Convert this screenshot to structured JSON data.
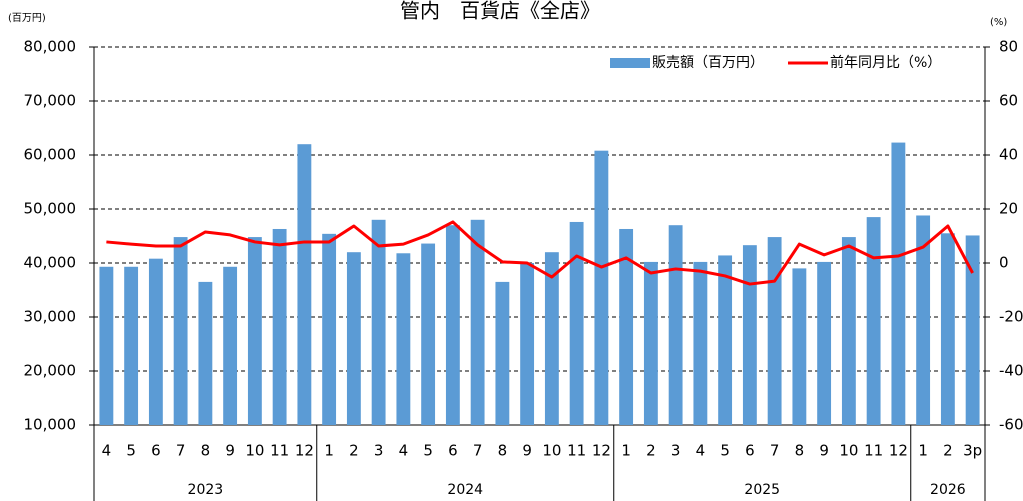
{
  "chart_data": {
    "type": "bar",
    "title": "管内　百貨店《全店》",
    "y_unit": "(百万円)",
    "y2_unit": "(%)",
    "categories": [
      "4",
      "5",
      "6",
      "7",
      "8",
      "9",
      "10",
      "11",
      "12",
      "1",
      "2",
      "3",
      "4",
      "5",
      "6",
      "7",
      "8",
      "9",
      "10",
      "11",
      "12",
      "1",
      "2",
      "3",
      "4",
      "5",
      "6",
      "7",
      "8",
      "9",
      "10",
      "11",
      "12",
      "1",
      "2",
      "3p"
    ],
    "groups": [
      "2023",
      "2024",
      "2025",
      "2026"
    ],
    "series": [
      {
        "name": "販売額（百万円）",
        "type": "bar",
        "color": "#5b9bd5",
        "values": [
          39300,
          39300,
          40800,
          44800,
          36500,
          39300,
          44800,
          46300,
          62000,
          45400,
          42000,
          48000,
          41800,
          43600,
          47000,
          48000,
          36500,
          40000,
          42000,
          47600,
          60800,
          46300,
          40200,
          47000,
          40200,
          41400,
          43300,
          44800,
          39000,
          40200,
          44800,
          48500,
          62300,
          48800,
          45500,
          45100
        ]
      },
      {
        "name": "前年同月比（%）",
        "type": "line",
        "axis": "y2",
        "color": "#ff0000",
        "values": [
          7.8,
          7,
          6.3,
          6.3,
          11.5,
          10.4,
          7.8,
          6.7,
          7.8,
          7.8,
          13.7,
          6.3,
          7,
          10.4,
          15.2,
          6.7,
          0.4,
          0,
          -5.2,
          2.6,
          -1.5,
          1.9,
          -3.7,
          -2.2,
          -3,
          -4.8,
          -7.8,
          -6.7,
          7,
          3,
          6.3,
          1.9,
          2.6,
          5.9,
          13.7,
          -3.7
        ]
      }
    ],
    "ylim": [
      10000,
      80000
    ],
    "yticks": [
      {
        "value": 10000,
        "label": "10,000"
      },
      {
        "value": 20000,
        "label": "20,000"
      },
      {
        "value": 30000,
        "label": "30,000"
      },
      {
        "value": 40000,
        "label": "40,000"
      },
      {
        "value": 50000,
        "label": "50,000"
      },
      {
        "value": 60000,
        "label": "60,000"
      },
      {
        "value": 70000,
        "label": "70,000"
      },
      {
        "value": 80000,
        "label": "80,000"
      }
    ],
    "y2lim": [
      -60,
      80
    ],
    "y2ticks": [
      -60,
      -40,
      -20,
      0,
      20,
      40,
      60,
      80
    ],
    "grid": true,
    "legend": "top-right"
  }
}
